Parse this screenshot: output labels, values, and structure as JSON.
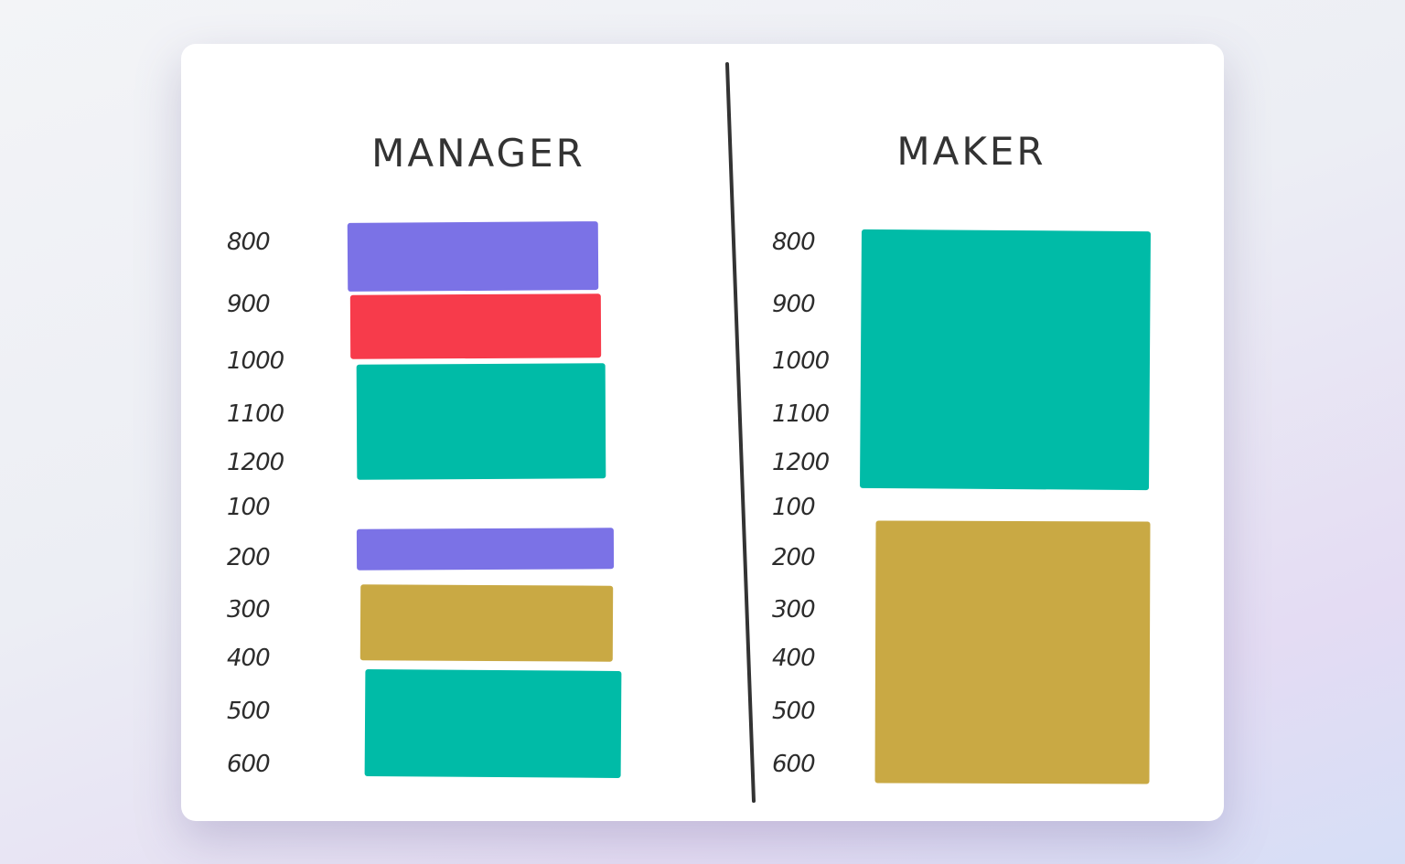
{
  "colors": {
    "purple": "#7b72e6",
    "red": "#f73b4b",
    "teal": "#00bba7",
    "gold": "#c9a944",
    "line": "#333333"
  },
  "manager": {
    "title": "MANAGER",
    "times": [
      "800",
      "900",
      "1000",
      "1100",
      "1200",
      "100",
      "200",
      "300",
      "400",
      "500",
      "600"
    ],
    "blocks": [
      {
        "color": "purple"
      },
      {
        "color": "red"
      },
      {
        "color": "teal"
      },
      {
        "color": "purple"
      },
      {
        "color": "gold"
      },
      {
        "color": "teal"
      }
    ]
  },
  "maker": {
    "title": "MAKER",
    "times": [
      "800",
      "900",
      "1000",
      "1100",
      "1200",
      "100",
      "200",
      "300",
      "400",
      "500",
      "600"
    ],
    "blocks": [
      {
        "color": "teal"
      },
      {
        "color": "gold"
      }
    ]
  }
}
